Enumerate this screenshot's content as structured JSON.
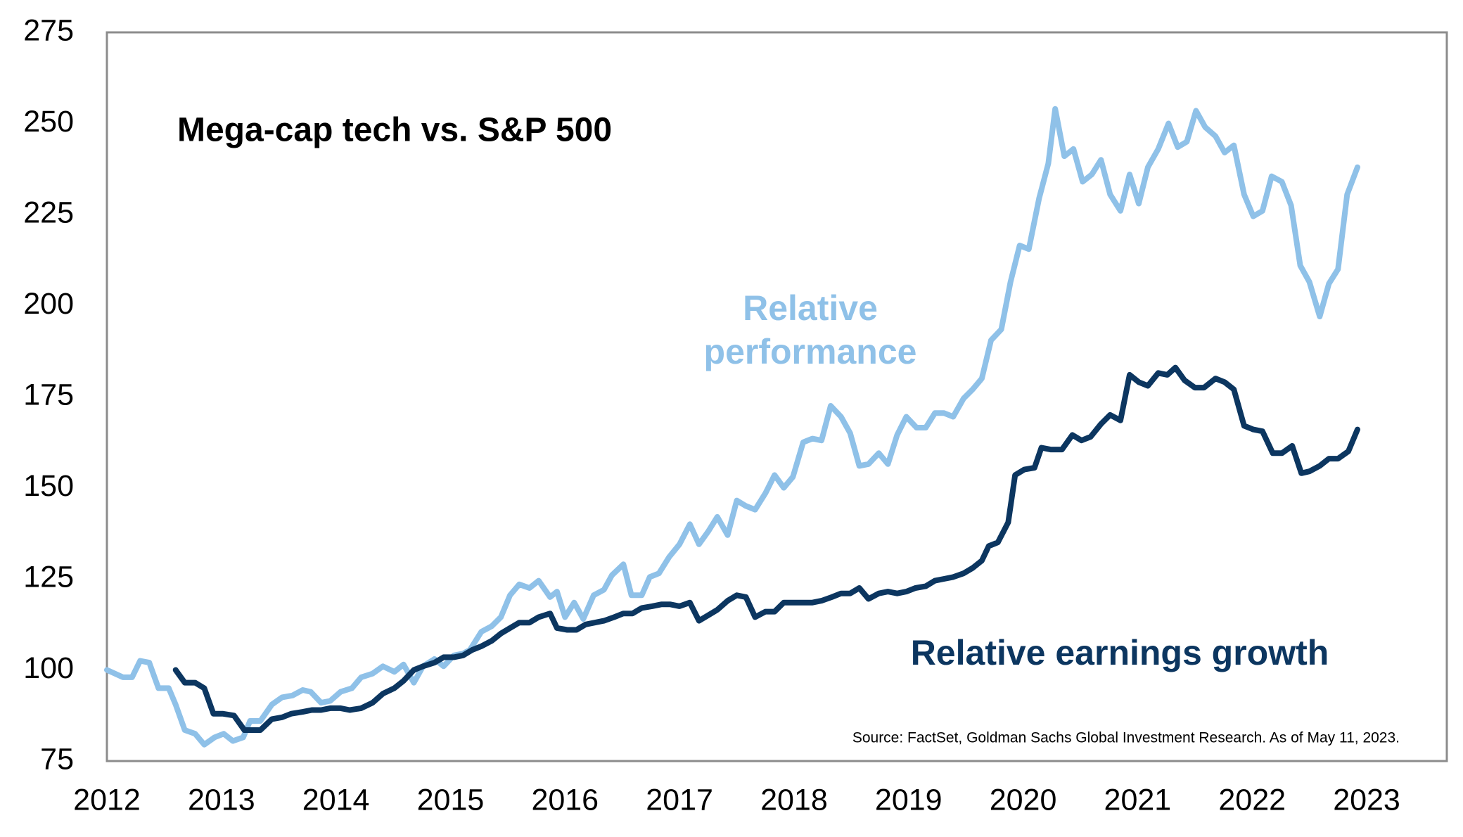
{
  "chart_data": {
    "type": "line",
    "title": "Mega-cap tech vs. S&P 500",
    "source": "Source: FactSet, Goldman Sachs Global Investment Research. As of May 11, 2023.",
    "xlim": [
      2012,
      2023.7
    ],
    "xticks": [
      2012,
      2013,
      2014,
      2015,
      2016,
      2017,
      2018,
      2019,
      2020,
      2021,
      2022,
      2023
    ],
    "ylim": [
      75,
      275
    ],
    "yticks": [
      75,
      100,
      125,
      150,
      175,
      200,
      225,
      250,
      275
    ],
    "grid": false,
    "series": [
      {
        "name": "Relative performance",
        "label_lines": [
          "Relative",
          "performance"
        ],
        "color": "#8fc1e8",
        "x": [
          2012.0,
          2012.14,
          2012.22,
          2012.29,
          2012.37,
          2012.45,
          2012.54,
          2012.6,
          2012.68,
          2012.77,
          2012.85,
          2012.94,
          2013.02,
          2013.1,
          2013.19,
          2013.25,
          2013.34,
          2013.44,
          2013.53,
          2013.62,
          2013.71,
          2013.78,
          2013.87,
          2013.95,
          2014.04,
          2014.14,
          2014.22,
          2014.32,
          2014.41,
          2014.51,
          2014.59,
          2014.68,
          2014.76,
          2014.86,
          2014.94,
          2015.03,
          2015.11,
          2015.17,
          2015.27,
          2015.36,
          2015.44,
          2015.52,
          2015.6,
          2015.69,
          2015.77,
          2015.87,
          2015.93,
          2016.0,
          2016.08,
          2016.16,
          2016.25,
          2016.34,
          2016.41,
          2016.51,
          2016.58,
          2016.67,
          2016.74,
          2016.82,
          2016.91,
          2017.0,
          2017.09,
          2017.17,
          2017.25,
          2017.33,
          2017.42,
          2017.5,
          2017.58,
          2017.66,
          2017.75,
          2017.83,
          2017.91,
          2017.99,
          2018.08,
          2018.16,
          2018.24,
          2018.32,
          2018.41,
          2018.49,
          2018.57,
          2018.65,
          2018.74,
          2018.82,
          2018.9,
          2018.98,
          2019.07,
          2019.15,
          2019.23,
          2019.31,
          2019.39,
          2019.48,
          2019.56,
          2019.64,
          2019.72,
          2019.81,
          2019.89,
          2019.97,
          2020.05,
          2020.14,
          2020.22,
          2020.28,
          2020.36,
          2020.44,
          2020.52,
          2020.6,
          2020.68,
          2020.76,
          2020.85,
          2020.93,
          2021.01,
          2021.09,
          2021.18,
          2021.27,
          2021.35,
          2021.43,
          2021.51,
          2021.59,
          2021.68,
          2021.76,
          2021.84,
          2021.93,
          2022.01,
          2022.09,
          2022.17,
          2022.26,
          2022.34,
          2022.42,
          2022.5,
          2022.59,
          2022.67,
          2022.75,
          2022.83,
          2022.92
        ],
        "values": [
          100,
          98,
          98,
          102.5,
          102,
          95,
          95,
          90.5,
          83.5,
          82.5,
          79.5,
          81.5,
          82.5,
          80.5,
          81.5,
          86,
          86,
          90.5,
          92.5,
          93,
          94.5,
          94,
          91,
          91.5,
          94,
          95,
          98,
          99,
          101,
          99.5,
          101.5,
          96.5,
          101,
          103,
          101,
          104,
          104.5,
          105.5,
          110.5,
          112,
          114.5,
          120.5,
          123.5,
          122.5,
          124.5,
          120,
          121.5,
          114.5,
          118.5,
          114,
          120.5,
          122,
          126,
          129,
          120.5,
          120.5,
          125.5,
          126.5,
          131,
          134.5,
          140,
          134.5,
          138,
          142,
          137,
          146.5,
          145,
          144,
          148.5,
          153.5,
          150,
          153,
          162.5,
          163.5,
          163,
          172.5,
          169.5,
          165,
          156,
          156.5,
          159.5,
          156.5,
          164.5,
          169.5,
          166.5,
          166.5,
          170.5,
          170.5,
          169.5,
          174.5,
          177,
          180,
          190.5,
          193.5,
          206.5,
          216.5,
          215.5,
          229.5,
          239,
          254,
          241,
          243,
          234,
          236,
          240,
          230.5,
          226,
          236,
          228,
          238,
          243,
          250,
          243.5,
          245,
          253.5,
          249,
          246.5,
          242,
          244,
          230.5,
          224.5,
          226,
          235.5,
          234,
          227.5,
          211,
          206.5,
          197,
          206,
          210,
          230.5,
          238
        ]
      },
      {
        "name": "Relative earnings growth",
        "color": "#0c3660",
        "x": [
          2012.6,
          2012.68,
          2012.77,
          2012.85,
          2012.93,
          2013.01,
          2013.11,
          2013.2,
          2013.26,
          2013.34,
          2013.44,
          2013.53,
          2013.61,
          2013.71,
          2013.79,
          2013.87,
          2013.95,
          2014.04,
          2014.12,
          2014.22,
          2014.32,
          2014.41,
          2014.51,
          2014.59,
          2014.68,
          2014.76,
          2014.86,
          2014.94,
          2015.03,
          2015.11,
          2015.19,
          2015.27,
          2015.36,
          2015.44,
          2015.52,
          2015.6,
          2015.69,
          2015.77,
          2015.87,
          2015.93,
          2016.02,
          2016.1,
          2016.18,
          2016.26,
          2016.34,
          2016.43,
          2016.51,
          2016.59,
          2016.67,
          2016.76,
          2016.84,
          2016.92,
          2017.0,
          2017.09,
          2017.17,
          2017.25,
          2017.33,
          2017.42,
          2017.5,
          2017.58,
          2017.66,
          2017.75,
          2017.83,
          2017.91,
          2017.99,
          2018.08,
          2018.16,
          2018.24,
          2018.33,
          2018.41,
          2018.49,
          2018.57,
          2018.65,
          2018.74,
          2018.82,
          2018.9,
          2018.98,
          2019.06,
          2019.15,
          2019.23,
          2019.31,
          2019.39,
          2019.48,
          2019.56,
          2019.64,
          2019.7,
          2019.78,
          2019.87,
          2019.93,
          2020.01,
          2020.1,
          2020.16,
          2020.24,
          2020.34,
          2020.43,
          2020.51,
          2020.59,
          2020.68,
          2020.76,
          2020.85,
          2020.93,
          2021.01,
          2021.09,
          2021.18,
          2021.26,
          2021.33,
          2021.41,
          2021.5,
          2021.58,
          2021.68,
          2021.76,
          2021.84,
          2021.93,
          2022.01,
          2022.09,
          2022.18,
          2022.26,
          2022.35,
          2022.43,
          2022.5,
          2022.59,
          2022.67,
          2022.75,
          2022.84,
          2022.92
        ],
        "values": [
          100,
          96.5,
          96.5,
          95,
          88,
          88,
          87.5,
          83.5,
          83.5,
          83.5,
          86.5,
          87,
          88,
          88.5,
          89,
          89,
          89.5,
          89.5,
          89,
          89.5,
          91,
          93.5,
          95,
          97,
          100,
          101,
          102,
          103.5,
          103.5,
          104,
          105.5,
          106.5,
          108,
          110,
          111.5,
          113,
          113,
          114.5,
          115.5,
          111.5,
          111,
          111,
          112.5,
          113,
          113.5,
          114.5,
          115.5,
          115.5,
          117,
          117.5,
          118,
          118,
          117.5,
          118.5,
          113.5,
          115,
          116.5,
          119,
          120.5,
          120,
          114.5,
          116,
          116,
          118.5,
          118.5,
          118.5,
          118.5,
          119,
          120,
          121,
          121,
          122.5,
          119.5,
          121,
          121.5,
          121,
          121.5,
          122.5,
          123,
          124.5,
          125,
          125.5,
          126.5,
          128,
          130,
          134,
          135,
          140.5,
          153.5,
          155,
          155.5,
          161,
          160.5,
          160.5,
          164.5,
          163,
          164,
          167.5,
          170,
          168.5,
          181,
          179,
          178,
          181.5,
          181,
          183,
          179.5,
          177.5,
          177.5,
          180,
          179,
          177,
          167,
          166,
          165.5,
          159.5,
          159.5,
          161.5,
          154,
          154.5,
          156,
          158,
          158,
          160,
          166
        ]
      }
    ]
  }
}
